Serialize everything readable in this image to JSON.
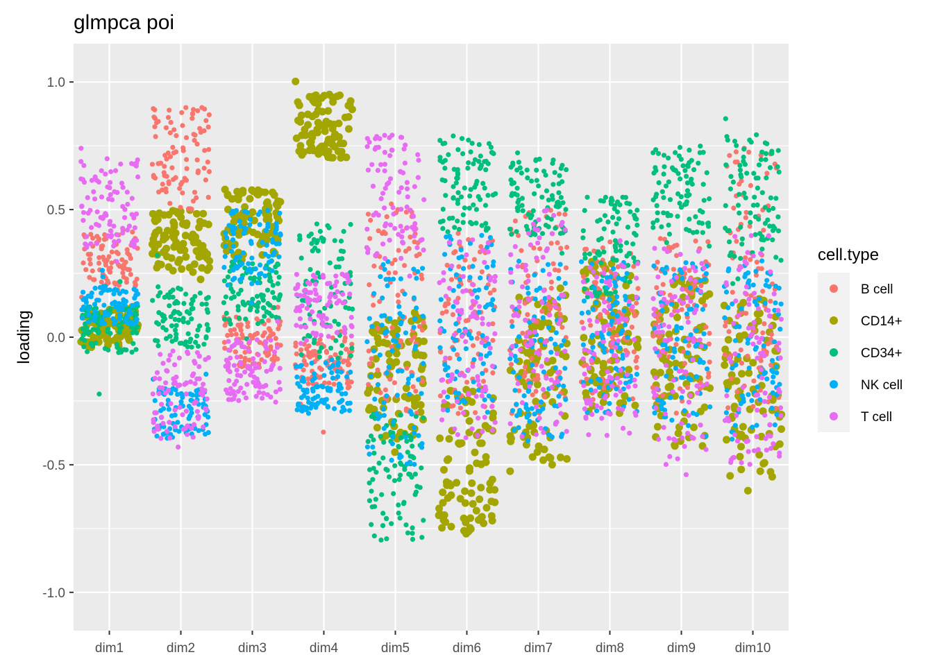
{
  "chart_data": {
    "type": "scatter",
    "geom": "jitter",
    "title": "glmpca poi",
    "xlabel": "",
    "ylabel": "loading",
    "categories": [
      "dim1",
      "dim2",
      "dim3",
      "dim4",
      "dim5",
      "dim6",
      "dim7",
      "dim8",
      "dim9",
      "dim10"
    ],
    "ylim": [
      -1.15,
      1.15
    ],
    "yticks": [
      -1.0,
      -0.5,
      0.0,
      0.5,
      1.0
    ],
    "ytick_labels": [
      "-1.0",
      "-0.5",
      "0.0",
      "0.5",
      "1.0"
    ],
    "grid": true,
    "legend": {
      "title": "cell.type",
      "placement": "right"
    },
    "panel_background": "#ebebeb",
    "grid_color": "#ffffff",
    "series": [
      {
        "name": "B cell",
        "color": "#F8766D",
        "ranges": [
          [
            0.2,
            0.42
          ],
          [
            0.5,
            0.9
          ],
          [
            -0.12,
            0.08
          ],
          [
            -0.2,
            0.0
          ],
          [
            -0.3,
            0.5
          ],
          [
            -0.3,
            0.4
          ],
          [
            -0.3,
            0.5
          ],
          [
            -0.25,
            0.35
          ],
          [
            -0.3,
            0.4
          ],
          [
            -0.3,
            0.75
          ]
        ]
      },
      {
        "name": "CD14+",
        "color": "#A3A500",
        "ranges": [
          [
            -0.04,
            0.12
          ],
          [
            0.25,
            0.5
          ],
          [
            0.3,
            0.58
          ],
          [
            0.7,
            0.95
          ],
          [
            -0.4,
            0.1
          ],
          [
            -0.78,
            -0.2
          ],
          [
            -0.5,
            0.2
          ],
          [
            -0.3,
            0.3
          ],
          [
            -0.45,
            0.25
          ],
          [
            -0.55,
            0.15
          ]
        ]
      },
      {
        "name": "CD34+",
        "color": "#00BF7D",
        "ranges": [
          [
            -0.07,
            0.12
          ],
          [
            -0.05,
            0.2
          ],
          [
            0.05,
            0.3
          ],
          [
            -0.1,
            0.45
          ],
          [
            -0.8,
            -0.3
          ],
          [
            0.4,
            0.78
          ],
          [
            0.4,
            0.7
          ],
          [
            0.15,
            0.55
          ],
          [
            0.4,
            0.75
          ],
          [
            0.3,
            0.8
          ]
        ]
      },
      {
        "name": "NK cell",
        "color": "#00B0F6",
        "ranges": [
          [
            0.05,
            0.2
          ],
          [
            -0.4,
            -0.2
          ],
          [
            0.2,
            0.5
          ],
          [
            -0.3,
            -0.1
          ],
          [
            -0.5,
            0.3
          ],
          [
            -0.3,
            0.4
          ],
          [
            -0.4,
            0.3
          ],
          [
            -0.3,
            0.3
          ],
          [
            -0.35,
            0.3
          ],
          [
            -0.4,
            0.3
          ]
        ]
      },
      {
        "name": "T cell",
        "color": "#E76BF3",
        "ranges": [
          [
            0.35,
            0.7
          ],
          [
            -0.4,
            -0.05
          ],
          [
            -0.25,
            0.0
          ],
          [
            0.0,
            0.25
          ],
          [
            0.3,
            0.8
          ],
          [
            -0.4,
            0.4
          ],
          [
            -0.4,
            0.5
          ],
          [
            -0.4,
            0.3
          ],
          [
            -0.5,
            0.35
          ],
          [
            -0.5,
            0.4
          ]
        ]
      }
    ]
  }
}
